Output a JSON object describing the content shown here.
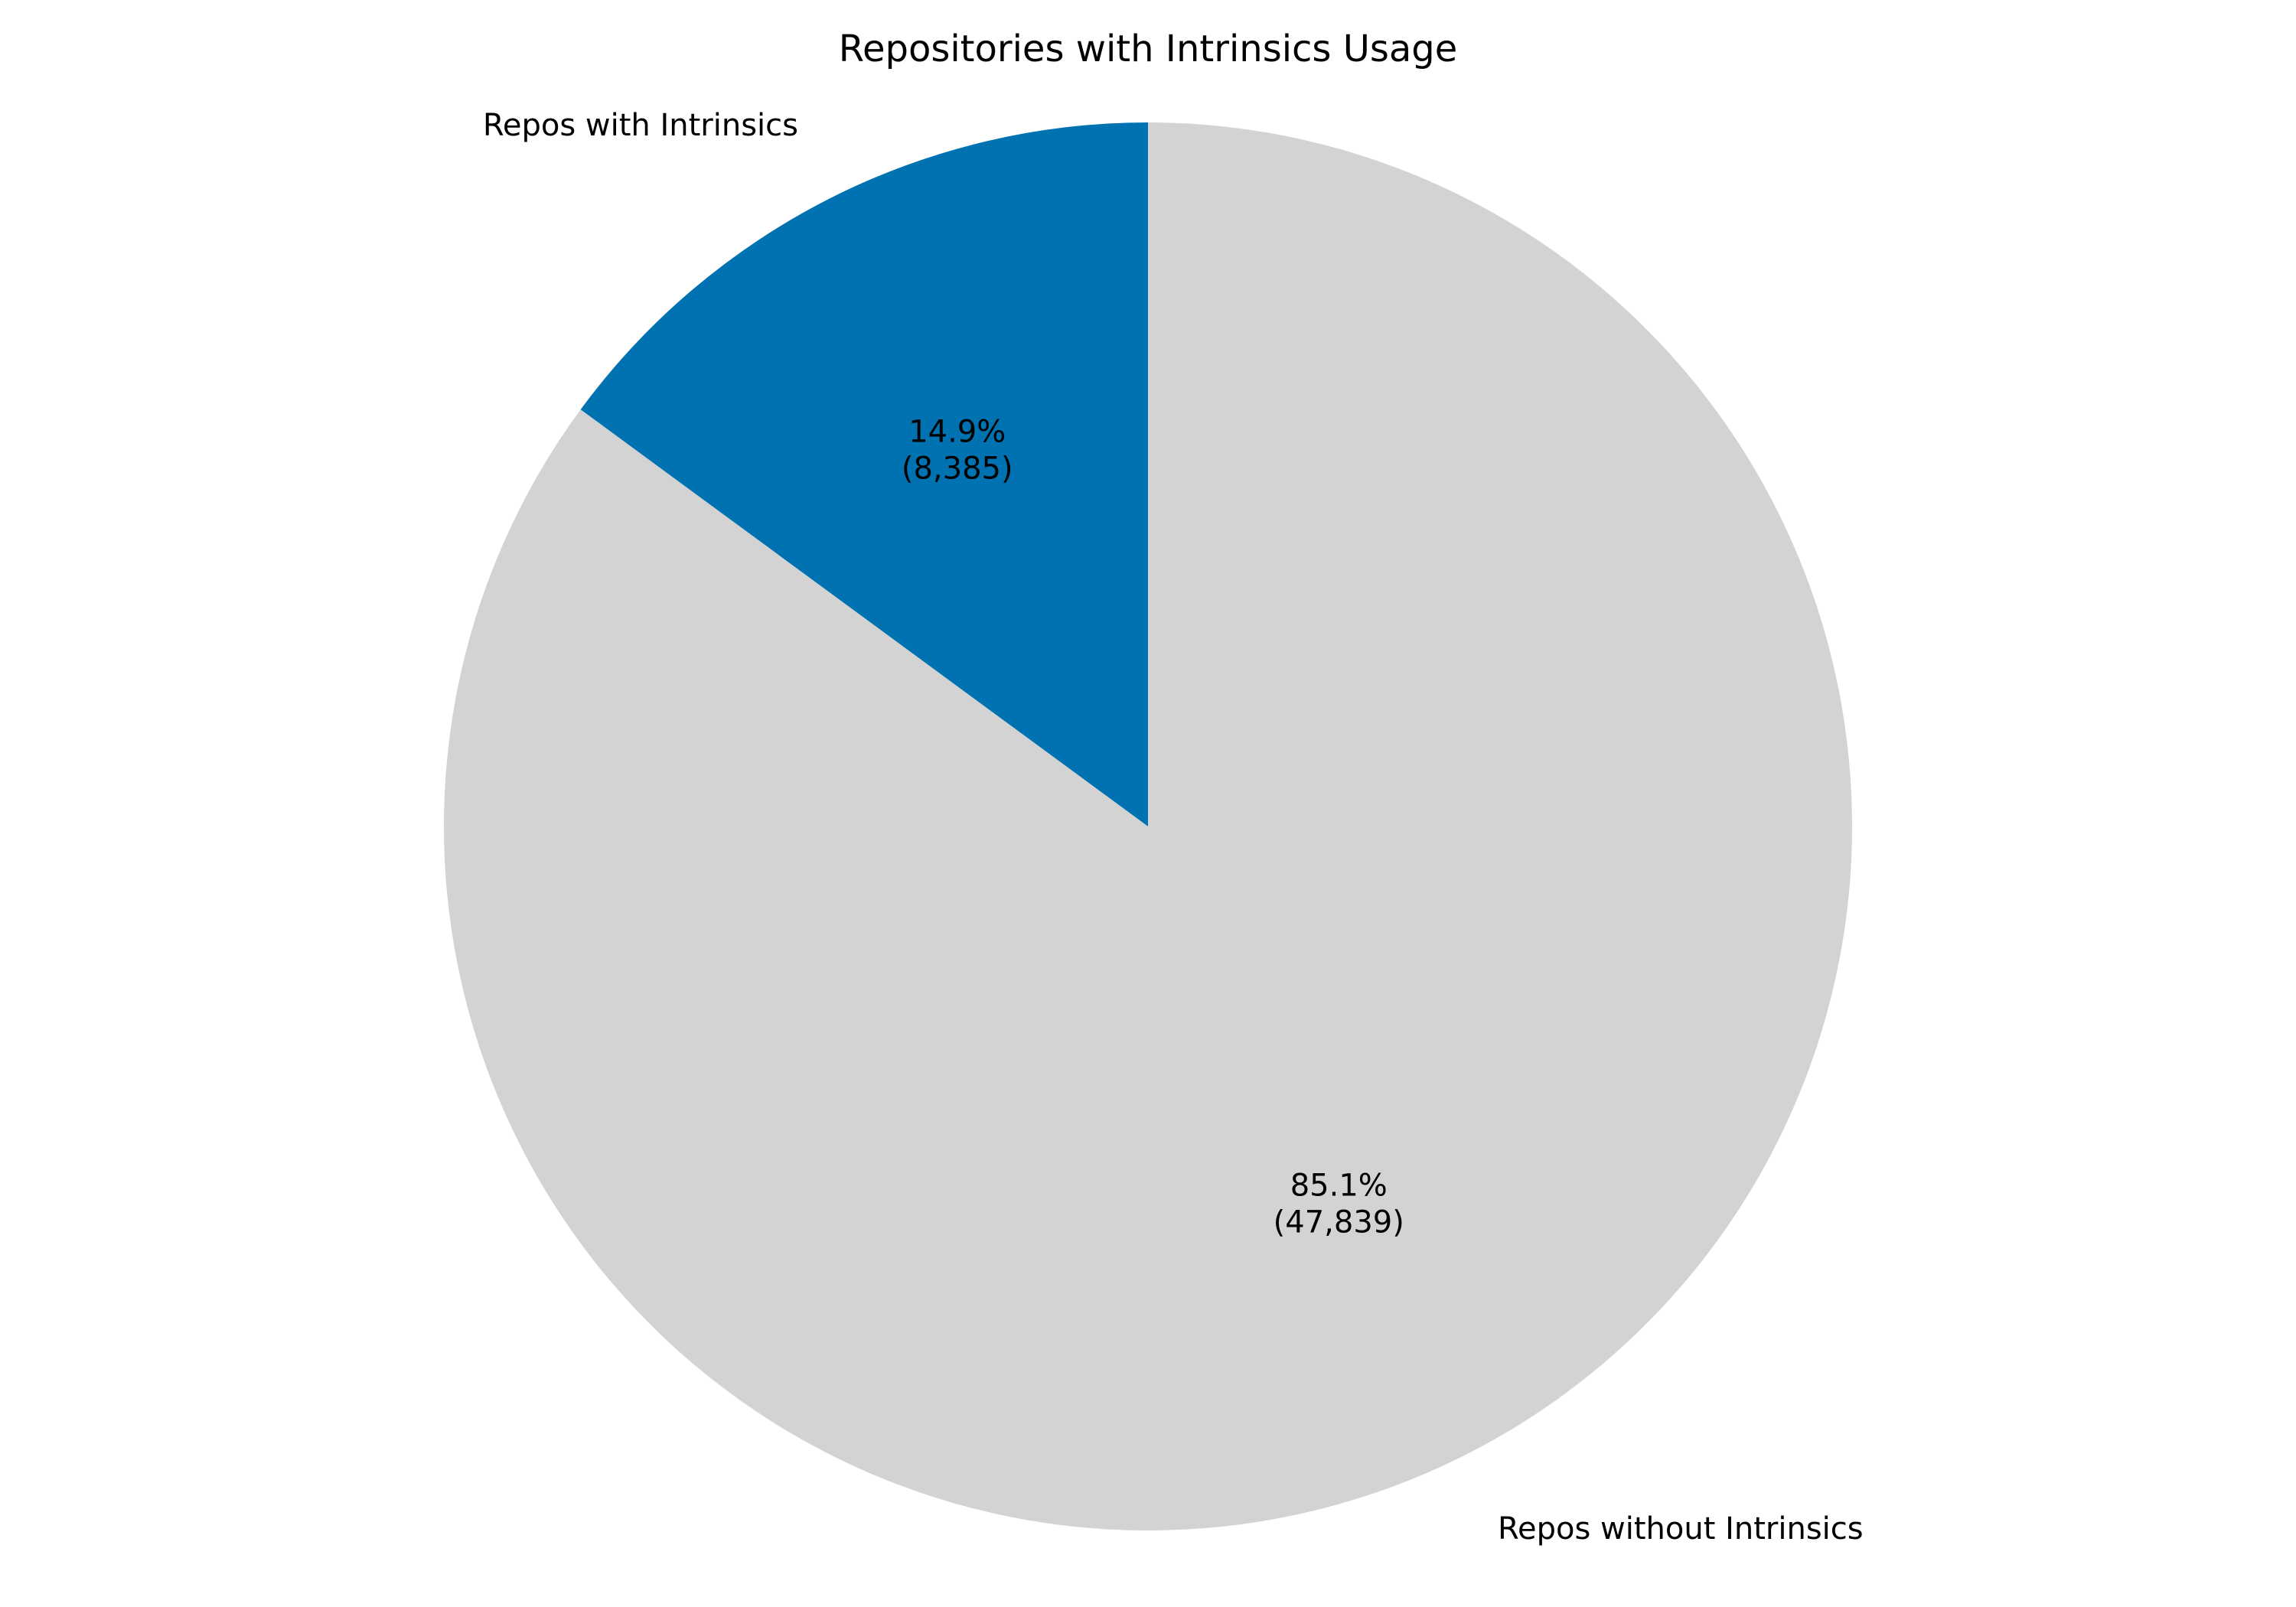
{
  "chart_data": {
    "type": "pie",
    "title": "Repositories with Intrinsics Usage",
    "start_angle_deg": 90,
    "direction": "counterclockwise",
    "slices": [
      {
        "label": "Repos with Intrinsics",
        "value": 8385,
        "percent_text": "14.9%",
        "value_text": "(8,385)",
        "color": "#0072b2"
      },
      {
        "label": "Repos without Intrinsics",
        "value": 47839,
        "percent_text": "85.1%",
        "value_text": "(47,839)",
        "color": "#d3d3d3"
      }
    ],
    "legend": "none"
  }
}
